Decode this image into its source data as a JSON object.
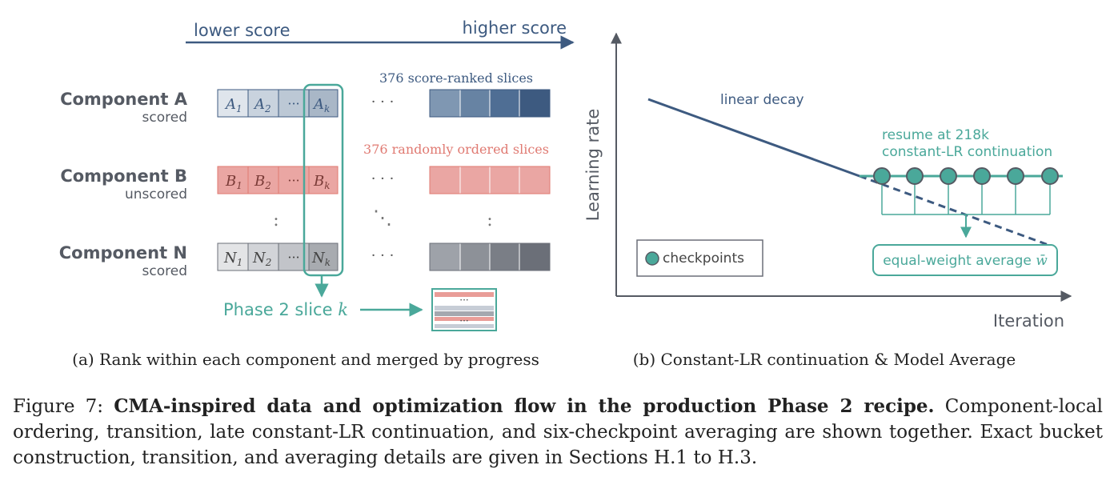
{
  "panel_a": {
    "axis": {
      "low_label": "lower score",
      "high_label": "higher score"
    },
    "components": [
      {
        "name": "Component A",
        "subtitle": "scored",
        "cells": [
          "A",
          "A",
          "A"
        ],
        "subs": [
          "1",
          "2",
          "k"
        ],
        "color": "#dfe5ec",
        "cell_k_color": "#a9b7c7"
      },
      {
        "name": "Component B",
        "subtitle": "unscored",
        "cells": [
          "B",
          "B",
          "B"
        ],
        "subs": [
          "1",
          "2",
          "k"
        ],
        "color": "#eaa6a3",
        "cell_k_color": "#eaa6a3"
      },
      {
        "name": "Component N",
        "subtitle": "scored",
        "cells": [
          "N",
          "N",
          "N"
        ],
        "subs": [
          "1",
          "2",
          "k"
        ],
        "color": "#e3e4e6",
        "cell_k_color": "#a8abb0"
      }
    ],
    "ellipsis_mid": "···",
    "ellipsis_cdots": "· · ·",
    "ellipsis_vdots": ":",
    "ellipsis_ddots": "⋱",
    "label_scored": "376 score-ranked slices",
    "label_random": "376 randomly ordered slices",
    "phase2_label": "Phase 2 slice",
    "phase2_var": "k",
    "mix_ellipsis": "···",
    "caption": "(a) Rank within each component and merged by progress"
  },
  "panel_b": {
    "ylabel": "Learning rate",
    "xlabel": "Iteration",
    "decay_label": "linear decay",
    "resume_label_1": "resume at 218k",
    "resume_label_2": "constant-LR continuation",
    "average_label": "equal-weight average",
    "average_symbol": "w̄",
    "legend_label": "checkpoints",
    "checkpoint_count": 6,
    "caption": "(b) Constant-LR continuation & Model Average"
  },
  "colors": {
    "navy": "#3d5a80",
    "teal": "#4aa89a",
    "red": "#e07a72",
    "gray": "#6b6f78",
    "dark": "#555a63"
  },
  "figure_caption": {
    "prefix": "Figure 7: ",
    "bold": "CMA-inspired data and optimization flow in the production Phase 2 recipe.",
    "rest": " Component-local ordering, transition, late constant-LR continuation, and six-checkpoint averaging are shown together. Exact bucket construction, transition, and averaging details are given in Sections H.1 to H.3."
  }
}
